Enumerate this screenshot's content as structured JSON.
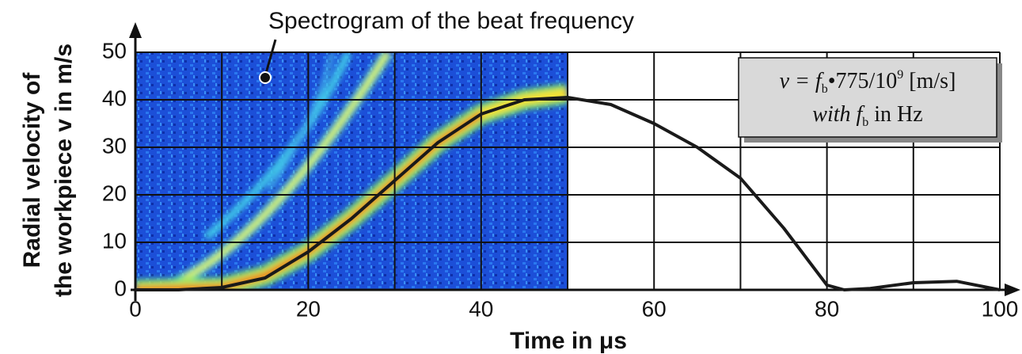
{
  "chart_data": {
    "type": "line",
    "annotation": "Spectrogram of the beat frequency",
    "y_label": [
      "Radial velocity of",
      "the workpiece v in m/s"
    ],
    "x_label": "Time in μs",
    "formula_lines": [
      [
        "v = f",
        "b",
        "•775/10",
        "9",
        " [m/s]"
      ],
      [
        "with f",
        "b",
        " in Hz"
      ]
    ],
    "x": [
      0,
      5,
      10,
      15,
      20,
      25,
      30,
      35,
      40,
      45,
      50,
      55,
      60,
      65,
      70,
      75,
      80,
      82,
      85,
      90,
      95,
      100
    ],
    "series": [
      {
        "color": "#1a1a1a",
        "values": [
          0,
          0,
          0.5,
          2.5,
          8,
          15,
          23,
          31,
          37,
          40,
          40.5,
          39,
          35,
          30,
          23.5,
          13,
          1,
          0,
          0.3,
          1.5,
          1.8,
          0
        ]
      }
    ],
    "xlim": [
      0,
      100
    ],
    "xticks": [
      0,
      20,
      40,
      60,
      80,
      100
    ],
    "x_minor_grid": [
      10,
      30,
      50,
      70,
      90
    ],
    "ylim": [
      0,
      50
    ],
    "yticks": [
      0,
      10,
      20,
      30,
      40,
      50
    ],
    "grid": true
  }
}
